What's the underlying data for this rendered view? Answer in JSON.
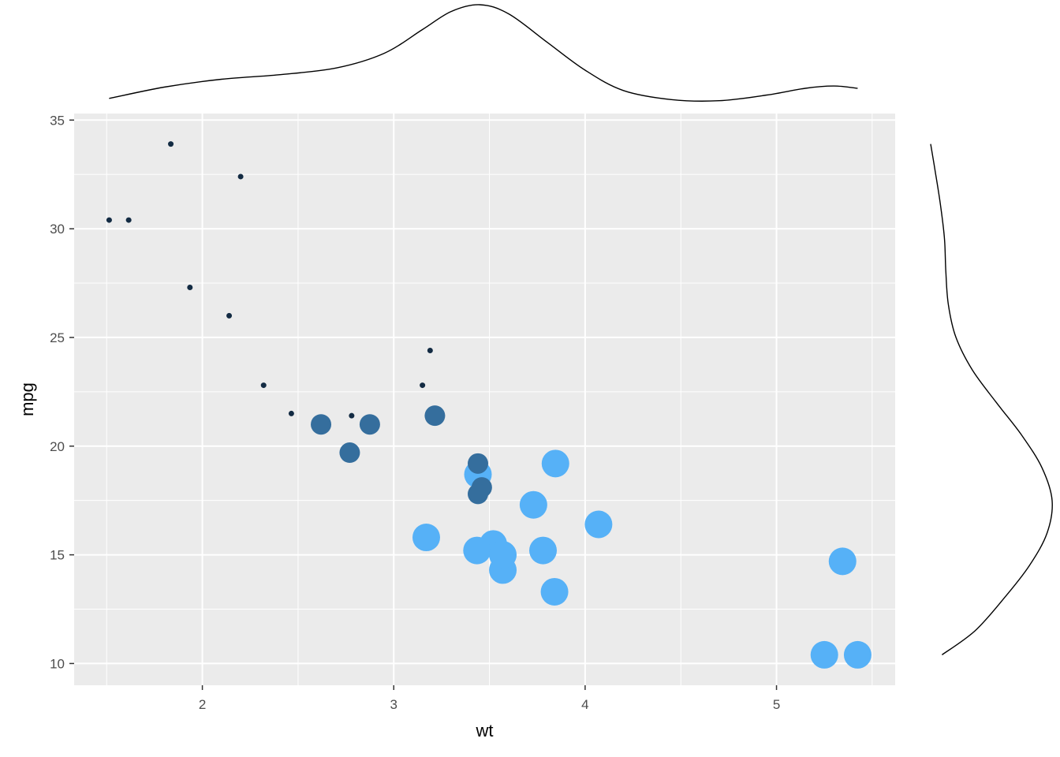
{
  "chart_data": {
    "type": "scatter",
    "title": "",
    "xlabel": "wt",
    "ylabel": "mpg",
    "xlim": [
      1.33,
      5.62
    ],
    "ylim": [
      9.0,
      35.3
    ],
    "x_ticks": [
      2,
      3,
      4,
      5
    ],
    "y_ticks": [
      10,
      15,
      20,
      25,
      30,
      35
    ],
    "grid": true,
    "panel_background": "#EBEBEB",
    "grid_color": "#FFFFFF",
    "point_size_scale": "cyl",
    "color_scale": {
      "low": "#132B43",
      "high": "#56B1F7"
    },
    "legend": "none",
    "points": [
      {
        "wt": 2.62,
        "mpg": 21.0,
        "cyl": 6
      },
      {
        "wt": 2.875,
        "mpg": 21.0,
        "cyl": 6
      },
      {
        "wt": 2.32,
        "mpg": 22.8,
        "cyl": 4
      },
      {
        "wt": 3.215,
        "mpg": 21.4,
        "cyl": 6
      },
      {
        "wt": 3.44,
        "mpg": 18.7,
        "cyl": 8
      },
      {
        "wt": 3.46,
        "mpg": 18.1,
        "cyl": 6
      },
      {
        "wt": 3.57,
        "mpg": 14.3,
        "cyl": 8
      },
      {
        "wt": 3.19,
        "mpg": 24.4,
        "cyl": 4
      },
      {
        "wt": 3.15,
        "mpg": 22.8,
        "cyl": 4
      },
      {
        "wt": 3.44,
        "mpg": 19.2,
        "cyl": 6
      },
      {
        "wt": 3.44,
        "mpg": 17.8,
        "cyl": 6
      },
      {
        "wt": 4.07,
        "mpg": 16.4,
        "cyl": 8
      },
      {
        "wt": 3.73,
        "mpg": 17.3,
        "cyl": 8
      },
      {
        "wt": 3.78,
        "mpg": 15.2,
        "cyl": 8
      },
      {
        "wt": 5.25,
        "mpg": 10.4,
        "cyl": 8
      },
      {
        "wt": 5.424,
        "mpg": 10.4,
        "cyl": 8
      },
      {
        "wt": 5.345,
        "mpg": 14.7,
        "cyl": 8
      },
      {
        "wt": 2.2,
        "mpg": 32.4,
        "cyl": 4
      },
      {
        "wt": 1.615,
        "mpg": 30.4,
        "cyl": 4
      },
      {
        "wt": 1.835,
        "mpg": 33.9,
        "cyl": 4
      },
      {
        "wt": 2.465,
        "mpg": 21.5,
        "cyl": 4
      },
      {
        "wt": 3.52,
        "mpg": 15.5,
        "cyl": 8
      },
      {
        "wt": 3.435,
        "mpg": 15.2,
        "cyl": 8
      },
      {
        "wt": 3.84,
        "mpg": 13.3,
        "cyl": 8
      },
      {
        "wt": 3.845,
        "mpg": 19.2,
        "cyl": 8
      },
      {
        "wt": 1.935,
        "mpg": 27.3,
        "cyl": 4
      },
      {
        "wt": 2.14,
        "mpg": 26.0,
        "cyl": 4
      },
      {
        "wt": 1.513,
        "mpg": 30.4,
        "cyl": 4
      },
      {
        "wt": 3.17,
        "mpg": 15.8,
        "cyl": 8
      },
      {
        "wt": 2.77,
        "mpg": 19.7,
        "cyl": 6
      },
      {
        "wt": 3.57,
        "mpg": 15.0,
        "cyl": 8
      },
      {
        "wt": 2.78,
        "mpg": 21.4,
        "cyl": 4
      }
    ],
    "marginal_x": {
      "type": "density",
      "variable": "wt",
      "x": [
        1.513,
        1.8,
        2.1,
        2.4,
        2.7,
        2.95,
        3.15,
        3.3,
        3.45,
        3.6,
        3.8,
        4.0,
        4.2,
        4.45,
        4.7,
        4.95,
        5.15,
        5.3,
        5.424
      ],
      "density": [
        0.05,
        0.15,
        0.22,
        0.26,
        0.32,
        0.45,
        0.66,
        0.82,
        0.88,
        0.8,
        0.55,
        0.3,
        0.12,
        0.04,
        0.03,
        0.08,
        0.14,
        0.16,
        0.14
      ]
    },
    "marginal_y": {
      "type": "density",
      "variable": "mpg",
      "y": [
        10.4,
        11.5,
        13.0,
        14.5,
        16.0,
        17.5,
        19.0,
        20.5,
        22.0,
        23.5,
        25.0,
        26.5,
        28.0,
        29.5,
        31.0,
        32.5,
        33.9
      ],
      "density": [
        0.09,
        0.35,
        0.58,
        0.78,
        0.92,
        0.96,
        0.88,
        0.72,
        0.52,
        0.33,
        0.2,
        0.14,
        0.12,
        0.11,
        0.08,
        0.04,
        0.0
      ]
    }
  }
}
